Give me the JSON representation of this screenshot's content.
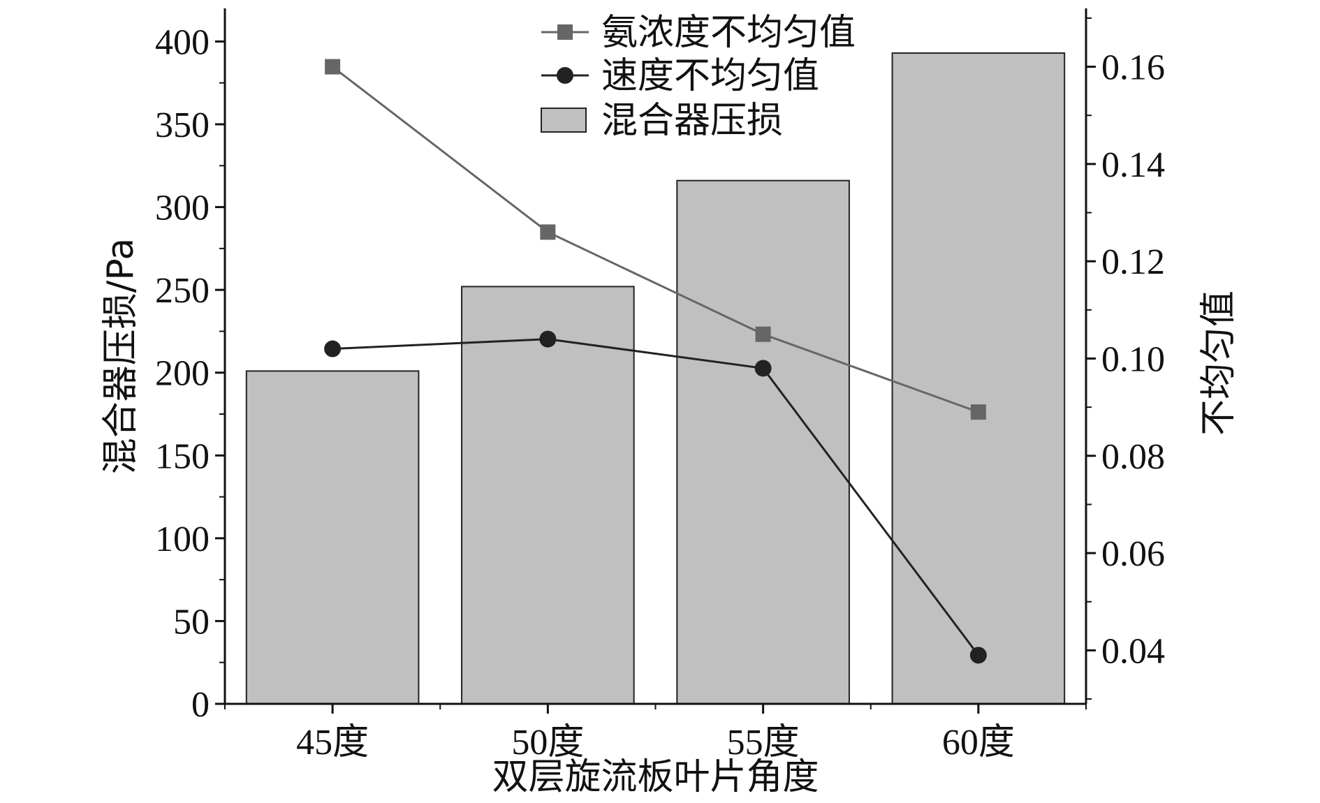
{
  "chart_data": {
    "type": "bar",
    "title": "",
    "xlabel": "双层旋流板叶片角度",
    "ylabel_left": "混合器压损/Pa",
    "ylabel_right": "不均匀值",
    "categories": [
      "45度",
      "50度",
      "55度",
      "60度"
    ],
    "ylim_left": [
      0,
      420
    ],
    "yticks_left": [
      "0",
      "50",
      "100",
      "150",
      "200",
      "250",
      "300",
      "350",
      "400"
    ],
    "ylim_right": [
      0.029,
      0.172
    ],
    "yticks_right": [
      "0.04",
      "0.06",
      "0.08",
      "0.10",
      "0.12",
      "0.14",
      "0.16"
    ],
    "legend_position": "top-center",
    "series": [
      {
        "name": "氨浓度不均匀值",
        "type": "line",
        "axis": "right",
        "marker": "square",
        "color": "#666666",
        "values": [
          0.16,
          0.126,
          0.105,
          0.089
        ]
      },
      {
        "name": "速度不均匀值",
        "type": "line",
        "axis": "right",
        "marker": "circle",
        "color": "#222222",
        "values": [
          0.102,
          0.104,
          0.098,
          0.039
        ]
      },
      {
        "name": "混合器压损",
        "type": "bar",
        "axis": "left",
        "color": "#c0c0c0",
        "values": [
          201,
          252,
          316,
          393
        ]
      }
    ]
  }
}
